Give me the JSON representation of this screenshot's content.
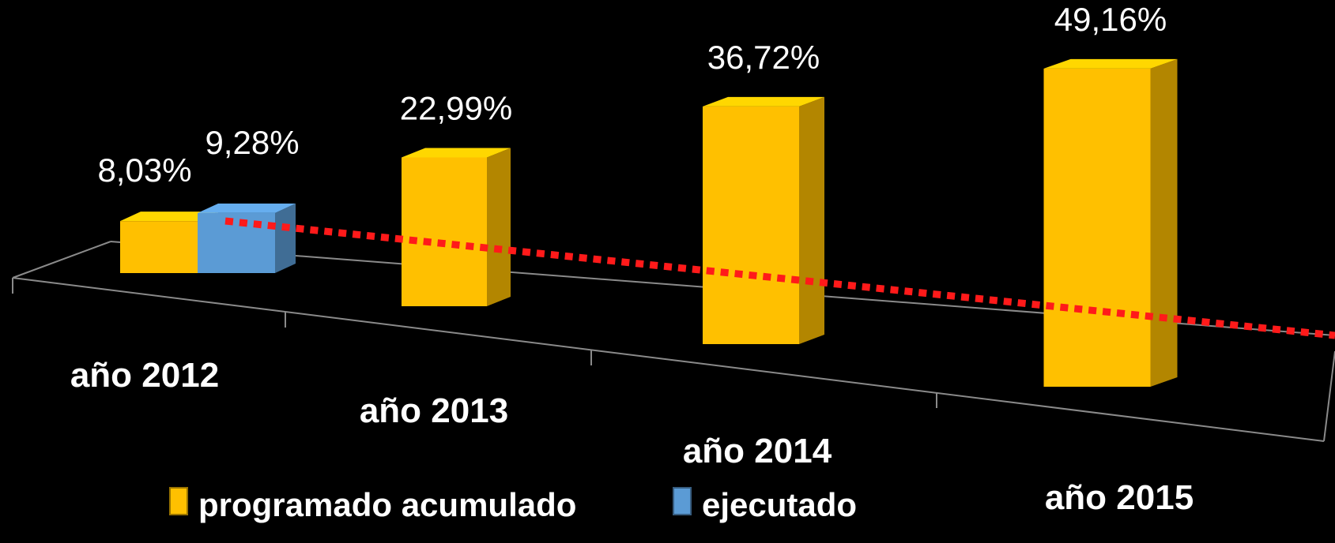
{
  "chart_data": {
    "type": "bar",
    "categories": [
      "año 2012",
      "año 2013",
      "año 2014",
      "año 2015"
    ],
    "series": [
      {
        "name": "programado acumulado",
        "color": "#ffc000",
        "values": [
          8.03,
          22.99,
          36.72,
          49.16
        ],
        "value_labels": [
          "8,03%",
          "22,99%",
          "36,72%",
          "49,16%"
        ]
      },
      {
        "name": "ejecutado",
        "color": "#5b9bd5",
        "values": [
          9.28,
          null,
          null,
          null
        ],
        "value_labels": [
          "9,28%",
          null,
          null,
          null
        ]
      }
    ],
    "legend": "bottom"
  }
}
